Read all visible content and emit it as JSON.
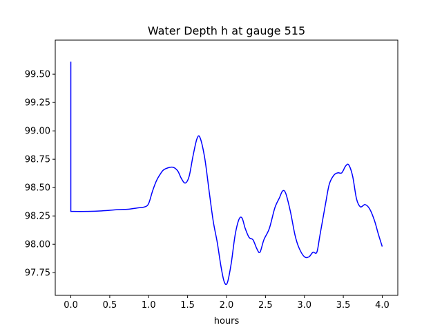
{
  "chart_data": {
    "type": "line",
    "title": "Water Depth h at gauge 515",
    "xlabel": "hours",
    "ylabel": "",
    "xlim": [
      -0.2,
      4.2
    ],
    "ylim": [
      97.55,
      99.8
    ],
    "grid": false,
    "x_ticks": [
      {
        "value": 0.0,
        "label": "0.0"
      },
      {
        "value": 0.5,
        "label": "0.5"
      },
      {
        "value": 1.0,
        "label": "1.0"
      },
      {
        "value": 1.5,
        "label": "1.5"
      },
      {
        "value": 2.0,
        "label": "2.0"
      },
      {
        "value": 2.5,
        "label": "2.5"
      },
      {
        "value": 3.0,
        "label": "3.0"
      },
      {
        "value": 3.5,
        "label": "3.5"
      },
      {
        "value": 4.0,
        "label": "4.0"
      }
    ],
    "y_ticks": [
      {
        "value": 97.75,
        "label": "97.75"
      },
      {
        "value": 98.0,
        "label": "98.00"
      },
      {
        "value": 98.25,
        "label": "98.25"
      },
      {
        "value": 98.5,
        "label": "98.50"
      },
      {
        "value": 98.75,
        "label": "98.75"
      },
      {
        "value": 99.0,
        "label": "99.00"
      },
      {
        "value": 99.25,
        "label": "99.25"
      },
      {
        "value": 99.5,
        "label": "99.50"
      }
    ],
    "series": [
      {
        "color": "#0000ff",
        "points": [
          [
            0.0,
            99.61
          ],
          [
            0.0,
            98.29
          ],
          [
            0.2,
            98.29
          ],
          [
            0.4,
            98.295
          ],
          [
            0.6,
            98.305
          ],
          [
            0.75,
            98.31
          ],
          [
            0.85,
            98.32
          ],
          [
            0.95,
            98.33
          ],
          [
            1.0,
            98.36
          ],
          [
            1.05,
            98.47
          ],
          [
            1.1,
            98.56
          ],
          [
            1.15,
            98.62
          ],
          [
            1.2,
            98.66
          ],
          [
            1.3,
            98.68
          ],
          [
            1.37,
            98.65
          ],
          [
            1.42,
            98.58
          ],
          [
            1.47,
            98.54
          ],
          [
            1.52,
            98.6
          ],
          [
            1.57,
            98.78
          ],
          [
            1.62,
            98.93
          ],
          [
            1.66,
            98.94
          ],
          [
            1.72,
            98.76
          ],
          [
            1.78,
            98.45
          ],
          [
            1.83,
            98.2
          ],
          [
            1.88,
            98.02
          ],
          [
            1.93,
            97.8
          ],
          [
            1.97,
            97.67
          ],
          [
            2.01,
            97.66
          ],
          [
            2.06,
            97.83
          ],
          [
            2.11,
            98.08
          ],
          [
            2.16,
            98.22
          ],
          [
            2.2,
            98.23
          ],
          [
            2.24,
            98.14
          ],
          [
            2.29,
            98.06
          ],
          [
            2.34,
            98.04
          ],
          [
            2.39,
            97.96
          ],
          [
            2.43,
            97.93
          ],
          [
            2.48,
            98.04
          ],
          [
            2.55,
            98.14
          ],
          [
            2.62,
            98.32
          ],
          [
            2.68,
            98.41
          ],
          [
            2.72,
            98.47
          ],
          [
            2.76,
            98.45
          ],
          [
            2.82,
            98.29
          ],
          [
            2.88,
            98.08
          ],
          [
            2.93,
            97.97
          ],
          [
            3.0,
            97.89
          ],
          [
            3.06,
            97.89
          ],
          [
            3.11,
            97.93
          ],
          [
            3.16,
            97.93
          ],
          [
            3.2,
            98.08
          ],
          [
            3.27,
            98.35
          ],
          [
            3.32,
            98.53
          ],
          [
            3.38,
            98.61
          ],
          [
            3.43,
            98.63
          ],
          [
            3.48,
            98.63
          ],
          [
            3.53,
            98.69
          ],
          [
            3.57,
            98.7
          ],
          [
            3.62,
            98.6
          ],
          [
            3.67,
            98.4
          ],
          [
            3.72,
            98.33
          ],
          [
            3.78,
            98.35
          ],
          [
            3.84,
            98.31
          ],
          [
            3.9,
            98.21
          ],
          [
            3.95,
            98.09
          ],
          [
            4.0,
            97.98
          ]
        ]
      }
    ]
  }
}
